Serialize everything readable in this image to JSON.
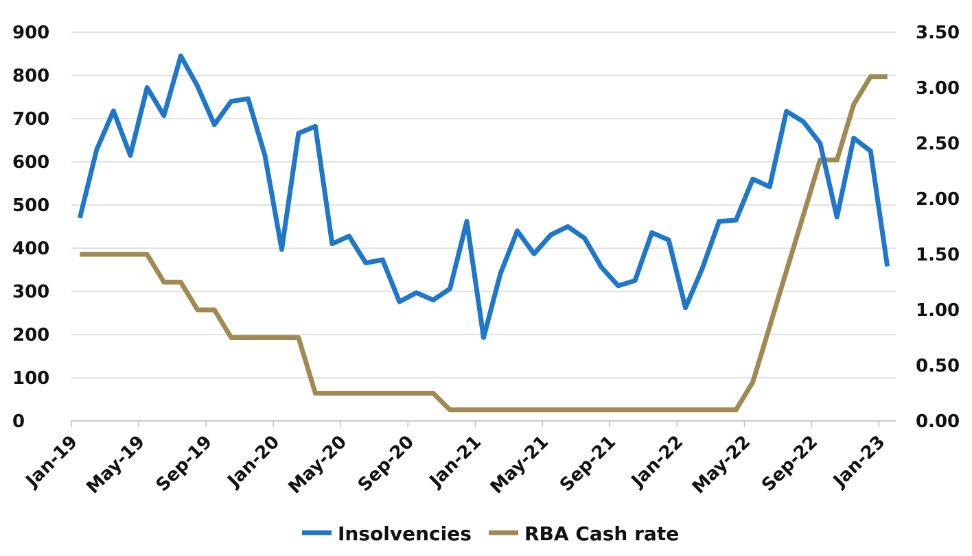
{
  "chart_data": {
    "type": "line",
    "title": "",
    "x_tick_labels": [
      "Jan-19",
      "May-19",
      "Sep-19",
      "Jan-20",
      "May-20",
      "Sep-20",
      "Jan-21",
      "May-21",
      "Sep-21",
      "Jan-22",
      "May-22",
      "Sep-22",
      "Jan-23"
    ],
    "y_left": {
      "label": "",
      "range": [
        0,
        900
      ],
      "ticks": [
        0,
        100,
        200,
        300,
        400,
        500,
        600,
        700,
        800,
        900
      ],
      "tick_labels": [
        "0",
        "100",
        "200",
        "300",
        "400",
        "500",
        "600",
        "700",
        "800",
        "900"
      ]
    },
    "y_right": {
      "label": "",
      "range": [
        0,
        3.5
      ],
      "ticks": [
        0,
        0.5,
        1,
        1.5,
        2,
        2.5,
        3,
        3.5
      ],
      "tick_labels": [
        "0.00",
        "0.50",
        "1.00",
        "1.50",
        "2.00",
        "2.50",
        "3.00",
        "3.50"
      ]
    },
    "grid": "horizontal",
    "legend_position": "bottom",
    "x": [
      "Jan-19",
      "Feb-19",
      "Mar-19",
      "Apr-19",
      "May-19",
      "Jun-19",
      "Jul-19",
      "Aug-19",
      "Sep-19",
      "Oct-19",
      "Nov-19",
      "Dec-19",
      "Jan-20",
      "Feb-20",
      "Mar-20",
      "Apr-20",
      "May-20",
      "Jun-20",
      "Jul-20",
      "Aug-20",
      "Sep-20",
      "Oct-20",
      "Nov-20",
      "Dec-20",
      "Jan-21",
      "Feb-21",
      "Mar-21",
      "Apr-21",
      "May-21",
      "Jun-21",
      "Jul-21",
      "Aug-21",
      "Sep-21",
      "Oct-21",
      "Nov-21",
      "Dec-21",
      "Jan-22",
      "Feb-22",
      "Mar-22",
      "Apr-22",
      "May-22",
      "Jun-22",
      "Jul-22",
      "Aug-22",
      "Sep-22",
      "Oct-22",
      "Nov-22",
      "Dec-22",
      "Jan-23"
    ],
    "series": [
      {
        "name": "Insolvencies",
        "axis": "left",
        "color": "#1f77c9",
        "values": [
          470,
          628,
          718,
          615,
          772,
          707,
          845,
          775,
          686,
          740,
          746,
          615,
          397,
          666,
          682,
          410,
          428,
          366,
          373,
          276,
          297,
          280,
          306,
          462,
          193,
          341,
          440,
          387,
          431,
          450,
          423,
          356,
          313,
          325,
          436,
          419,
          262,
          353,
          462,
          465,
          560,
          542,
          717,
          693,
          643,
          472,
          655,
          625,
          358
        ]
      },
      {
        "name": "RBA Cash rate",
        "axis": "right",
        "color": "#a08a52",
        "values": [
          1.5,
          1.5,
          1.5,
          1.5,
          1.5,
          1.25,
          1.25,
          1.0,
          1.0,
          0.75,
          0.75,
          0.75,
          0.75,
          0.75,
          0.25,
          0.25,
          0.25,
          0.25,
          0.25,
          0.25,
          0.25,
          0.25,
          0.1,
          0.1,
          0.1,
          0.1,
          0.1,
          0.1,
          0.1,
          0.1,
          0.1,
          0.1,
          0.1,
          0.1,
          0.1,
          0.1,
          0.1,
          0.1,
          0.1,
          0.1,
          0.35,
          0.85,
          1.35,
          1.85,
          2.35,
          2.35,
          2.85,
          3.1,
          3.1
        ]
      }
    ]
  }
}
